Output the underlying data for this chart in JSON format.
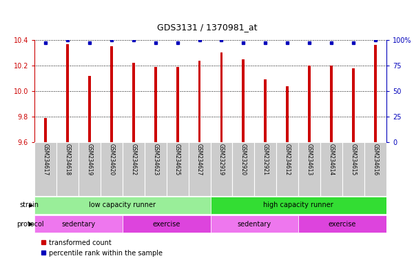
{
  "title": "GDS3131 / 1370981_at",
  "samples": [
    "GSM234617",
    "GSM234618",
    "GSM234619",
    "GSM234620",
    "GSM234622",
    "GSM234623",
    "GSM234625",
    "GSM234627",
    "GSM232919",
    "GSM232920",
    "GSM232921",
    "GSM234612",
    "GSM234613",
    "GSM234614",
    "GSM234615",
    "GSM234616"
  ],
  "transformed_counts": [
    9.79,
    10.37,
    10.12,
    10.35,
    10.22,
    10.19,
    10.19,
    10.24,
    10.3,
    10.25,
    10.09,
    10.04,
    10.2,
    10.2,
    10.18,
    10.36
  ],
  "percentile_ranks": [
    97,
    100,
    97,
    100,
    100,
    97,
    97,
    100,
    100,
    97,
    97,
    97,
    97,
    97,
    97,
    100
  ],
  "ylim_left": [
    9.6,
    10.4
  ],
  "ylim_right": [
    0,
    100
  ],
  "yticks_left": [
    9.6,
    9.8,
    10.0,
    10.2,
    10.4
  ],
  "yticks_right": [
    0,
    25,
    50,
    75,
    100
  ],
  "bar_color": "#CC0000",
  "dot_color": "#0000BB",
  "bar_width": 0.12,
  "strain_groups": [
    {
      "label": "low capacity runner",
      "start": 0,
      "end": 8,
      "color": "#99EE99"
    },
    {
      "label": "high capacity runner",
      "start": 8,
      "end": 16,
      "color": "#33DD33"
    }
  ],
  "protocol_groups": [
    {
      "label": "sedentary",
      "start": 0,
      "end": 4,
      "color": "#EE77EE"
    },
    {
      "label": "exercise",
      "start": 4,
      "end": 8,
      "color": "#DD44DD"
    },
    {
      "label": "sedentary",
      "start": 8,
      "end": 12,
      "color": "#EE77EE"
    },
    {
      "label": "exercise",
      "start": 12,
      "end": 16,
      "color": "#DD44DD"
    }
  ],
  "strain_label": "strain",
  "protocol_label": "protocol",
  "legend_bar_label": "transformed count",
  "legend_dot_label": "percentile rank within the sample",
  "background_color": "#FFFFFF",
  "tick_label_area_color": "#CCCCCC",
  "left_axis_color": "#CC0000",
  "right_axis_color": "#0000BB"
}
